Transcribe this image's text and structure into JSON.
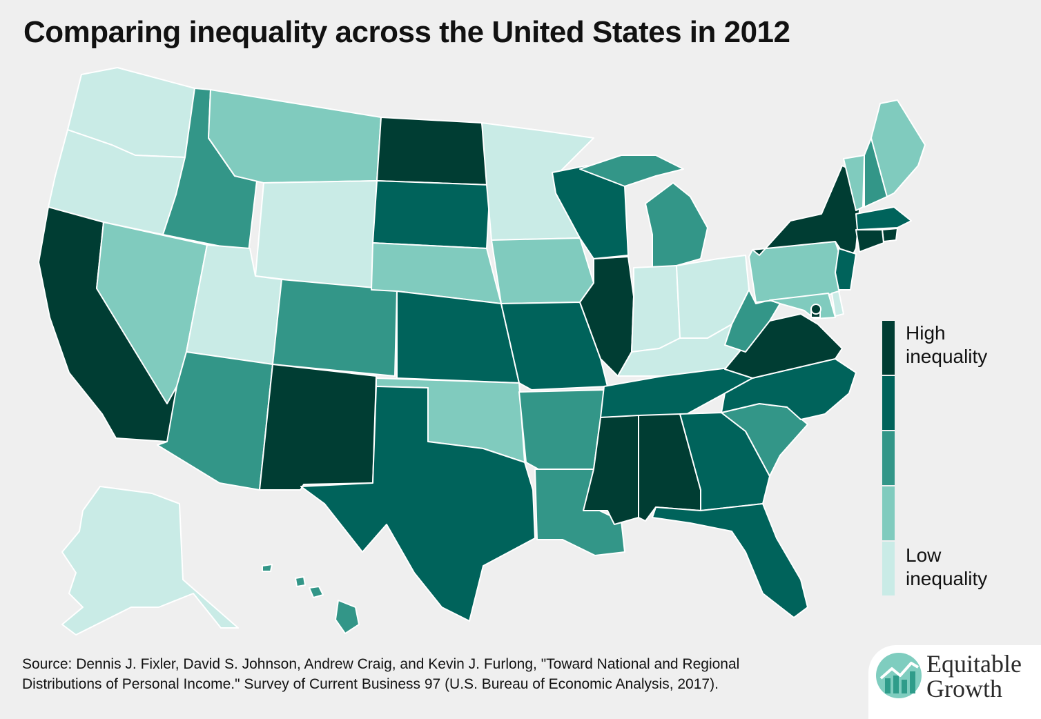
{
  "title": "Comparing inequality across the United States in 2012",
  "legend": {
    "high_label_1": "High",
    "high_label_2": "inequality",
    "low_label_1": "Low",
    "low_label_2": "inequality",
    "colors": [
      "#003d33",
      "#00635b",
      "#339688",
      "#80cbbe",
      "#c9ebe6"
    ]
  },
  "palette": {
    "highest": "#003d33",
    "high": "#00635b",
    "mid": "#339688",
    "low": "#80cbbe",
    "lowest": "#c9ebe6",
    "background": "#efefef",
    "border": "#ffffff"
  },
  "states": [
    {
      "name": "WA",
      "level": 1
    },
    {
      "name": "OR",
      "level": 1
    },
    {
      "name": "CA",
      "level": 5
    },
    {
      "name": "NV",
      "level": 2
    },
    {
      "name": "ID",
      "level": 3
    },
    {
      "name": "MT",
      "level": 2
    },
    {
      "name": "WY",
      "level": 1
    },
    {
      "name": "UT",
      "level": 1
    },
    {
      "name": "AZ",
      "level": 3
    },
    {
      "name": "CO",
      "level": 3
    },
    {
      "name": "NM",
      "level": 5
    },
    {
      "name": "ND",
      "level": 5
    },
    {
      "name": "SD",
      "level": 4
    },
    {
      "name": "NE",
      "level": 2
    },
    {
      "name": "KS",
      "level": 4
    },
    {
      "name": "OK",
      "level": 2
    },
    {
      "name": "TX",
      "level": 4
    },
    {
      "name": "MN",
      "level": 1
    },
    {
      "name": "IA",
      "level": 2
    },
    {
      "name": "MO",
      "level": 4
    },
    {
      "name": "AR",
      "level": 3
    },
    {
      "name": "LA",
      "level": 3
    },
    {
      "name": "WI",
      "level": 4
    },
    {
      "name": "IL",
      "level": 5
    },
    {
      "name": "MI",
      "level": 3
    },
    {
      "name": "IN",
      "level": 1
    },
    {
      "name": "OH",
      "level": 1
    },
    {
      "name": "KY",
      "level": 1
    },
    {
      "name": "TN",
      "level": 4
    },
    {
      "name": "MS",
      "level": 5
    },
    {
      "name": "AL",
      "level": 5
    },
    {
      "name": "GA",
      "level": 4
    },
    {
      "name": "FL",
      "level": 4
    },
    {
      "name": "SC",
      "level": 3
    },
    {
      "name": "NC",
      "level": 4
    },
    {
      "name": "VA",
      "level": 5
    },
    {
      "name": "WV",
      "level": 3
    },
    {
      "name": "PA",
      "level": 2
    },
    {
      "name": "NY",
      "level": 5
    },
    {
      "name": "VT",
      "level": 2
    },
    {
      "name": "NH",
      "level": 3
    },
    {
      "name": "ME",
      "level": 2
    },
    {
      "name": "MA",
      "level": 4
    },
    {
      "name": "RI",
      "level": 5
    },
    {
      "name": "CT",
      "level": 5
    },
    {
      "name": "NJ",
      "level": 4
    },
    {
      "name": "DE",
      "level": 1
    },
    {
      "name": "MD",
      "level": 2
    },
    {
      "name": "DC",
      "level": 5
    },
    {
      "name": "AK",
      "level": 1
    },
    {
      "name": "HI",
      "level": 3
    }
  ],
  "source_line_1": "Source: Dennis J. Fixler, David S. Johnson, Andrew Craig, and Kevin J. Furlong, \"Toward National and Regional",
  "source_line_2": "Distributions of Personal Income.\" Survey of Current Business 97 (U.S. Bureau of Economic Analysis, 2017).",
  "logo": {
    "line_1": "Equitable",
    "line_2": "Growth",
    "icon": "rising-chart-icon"
  }
}
